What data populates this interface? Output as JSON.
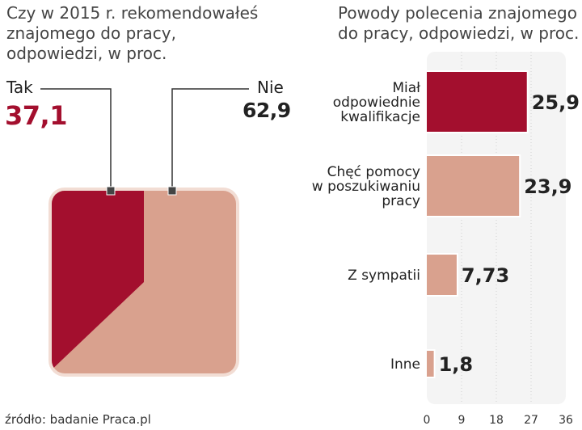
{
  "colors": {
    "primary": "#A30F2E",
    "secondary": "#D9A18E",
    "frame": "#F2DDD4",
    "line": "#333333"
  },
  "chart_data": [
    {
      "type": "pie",
      "title": "Czy w 2015 r. rekomendowałeś znajomego do pracy, odpowiedzi, w proc.",
      "slices": [
        {
          "label": "Tak",
          "value": 37.1,
          "display": "37,1",
          "color": "#A30F2E"
        },
        {
          "label": "Nie",
          "value": 62.9,
          "display": "62,9",
          "color": "#D9A18E"
        }
      ]
    },
    {
      "type": "bar",
      "orientation": "horizontal",
      "title": "Powody polecenia znajomego do pracy, odpowiedzi, w proc.",
      "categories": [
        [
          "Miał",
          "odpowiednie",
          "kwalifikacje"
        ],
        [
          "Chęć pomocy",
          "w poszukiwaniu",
          "pracy"
        ],
        [
          "Z sympatii"
        ],
        [
          "Inne"
        ]
      ],
      "values": [
        25.9,
        23.9,
        7.73,
        1.8
      ],
      "value_labels": [
        "25,9",
        "23,9",
        "7,73",
        "1,8"
      ],
      "xlim": [
        0,
        36
      ],
      "xticks": [
        "0",
        "9",
        "18",
        "27",
        "36"
      ],
      "grid": true
    }
  ],
  "source": "źródło: badanie Praca.pl"
}
